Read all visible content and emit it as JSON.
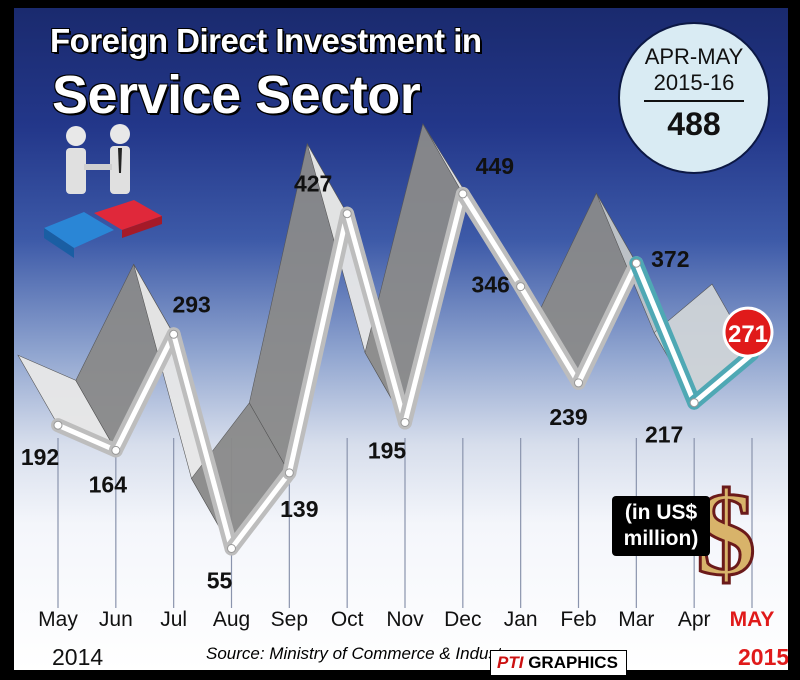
{
  "title_line1": "Foreign Direct Investment in",
  "title_line2": "Service Sector",
  "summary": {
    "period": "APR-MAY 2015-16",
    "period_line1": "APR-MAY",
    "period_line2": "2015-16",
    "value": "488"
  },
  "unit_line1": "(in US$",
  "unit_line2": "million)",
  "source": "Source: Ministry of Commerce & Industry",
  "credit_pti": "PTI",
  "credit_rest": "GRAPHICS",
  "year_start": "2014",
  "year_end": "2015",
  "colors": {
    "highlight": "#e01a1a",
    "teal": "#4fa8b4",
    "ribbon": "#f2f2f2",
    "background_top": "#1a2a6e"
  },
  "icons": [
    "handshake-figures-icon",
    "puzzle-pieces-icon",
    "dollar-sign-icon"
  ],
  "chart_data": {
    "type": "line",
    "categories": [
      "May",
      "Jun",
      "Jul",
      "Aug",
      "Sep",
      "Oct",
      "Nov",
      "Dec",
      "Jan",
      "Feb",
      "Mar",
      "Apr",
      "MAY"
    ],
    "values": [
      192,
      164,
      293,
      55,
      139,
      427,
      195,
      449,
      346,
      239,
      372,
      217,
      271
    ],
    "ylim": [
      0,
      500
    ],
    "highlight_last": true,
    "grid": "vertical"
  }
}
